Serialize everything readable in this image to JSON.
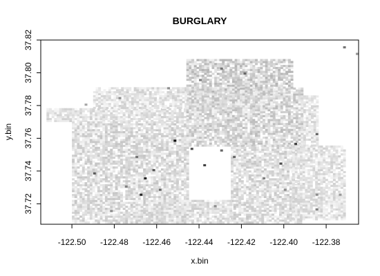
{
  "chart_data": {
    "type": "heatmap",
    "title": "BURGLARY",
    "xlabel": "x.bin",
    "ylabel": "y.bin",
    "xlim": [
      -122.5147,
      -122.3647
    ],
    "ylim": [
      37.7075,
      37.82
    ],
    "x_ticks": [
      -122.5,
      -122.48,
      -122.46,
      -122.44,
      -122.42,
      -122.4,
      -122.38
    ],
    "y_ticks": [
      37.72,
      37.74,
      37.76,
      37.78,
      37.8,
      37.82
    ],
    "x_tick_labels": [
      "-122.50",
      "-122.48",
      "-122.46",
      "-122.44",
      "-122.42",
      "-122.40",
      "-122.38"
    ],
    "y_tick_labels": [
      "37.72",
      "37.74",
      "37.76",
      "37.78",
      "37.80",
      "37.82"
    ],
    "bin_size": 0.0012,
    "color_scale": "white-to-black grayscale (higher burglary count = darker)",
    "cells": [
      [
        -122.466,
        37.735,
        0.85
      ],
      [
        -122.468,
        37.725,
        0.85
      ],
      [
        -122.452,
        37.758,
        0.95
      ],
      [
        -122.438,
        37.743,
        0.75
      ],
      [
        -122.462,
        37.74,
        0.65
      ],
      [
        -122.49,
        37.738,
        0.65
      ],
      [
        -122.459,
        37.728,
        0.6
      ],
      [
        -122.444,
        37.753,
        0.7
      ],
      [
        -122.43,
        37.752,
        0.6
      ],
      [
        -122.424,
        37.748,
        0.6
      ],
      [
        -122.419,
        37.799,
        0.6
      ],
      [
        -122.402,
        37.744,
        0.7
      ],
      [
        -122.395,
        37.756,
        0.75
      ],
      [
        -122.385,
        37.762,
        0.6
      ],
      [
        -122.43,
        37.802,
        0.55
      ],
      [
        -122.44,
        37.795,
        0.5
      ],
      [
        -122.455,
        37.79,
        0.45
      ],
      [
        -122.478,
        37.784,
        0.45
      ],
      [
        -122.494,
        37.78,
        0.35
      ],
      [
        -122.47,
        37.748,
        0.55
      ],
      [
        -122.475,
        37.73,
        0.5
      ],
      [
        -122.482,
        37.715,
        0.45
      ],
      [
        -122.433,
        37.718,
        0.45
      ],
      [
        -122.41,
        37.735,
        0.5
      ],
      [
        -122.4,
        37.728,
        0.45
      ],
      [
        -122.385,
        37.725,
        0.45
      ],
      [
        -122.385,
        37.716,
        0.5
      ],
      [
        -122.374,
        37.725,
        0.4
      ],
      [
        -122.372,
        37.815,
        0.55
      ],
      [
        -122.366,
        37.811,
        0.4
      ]
    ]
  }
}
